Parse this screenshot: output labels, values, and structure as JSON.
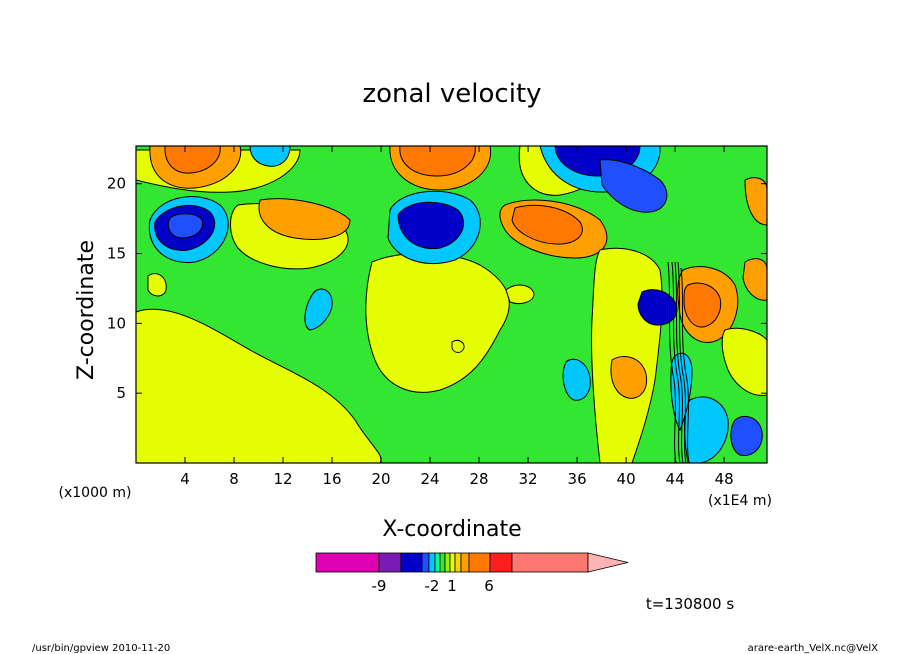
{
  "chart_data": {
    "type": "heatmap",
    "title": "zonal velocity",
    "xlabel": "X-coordinate",
    "ylabel": "Z-coordinate",
    "x_unit_label": "(x1E4 m)",
    "y_unit_label": "(x1000 m)",
    "xlim": [
      0,
      51.5
    ],
    "ylim": [
      0,
      22.7
    ],
    "x_ticks": [
      4,
      8,
      12,
      16,
      20,
      24,
      28,
      32,
      36,
      40,
      44,
      48
    ],
    "y_ticks": [
      5,
      10,
      15,
      20
    ],
    "time_label": "t=130800 s",
    "colorbar": {
      "tick_labels": [
        {
          "text": "-9",
          "value": -9
        },
        {
          "text": "-2",
          "value": -2
        },
        {
          "text": "1",
          "value": 1
        },
        {
          "text": "6",
          "value": 6
        }
      ],
      "colors": [
        "#e000b4",
        "#7a1ab4",
        "#0000c8",
        "#1e50ff",
        "#00c8ff",
        "#00ff96",
        "#32e632",
        "#96f000",
        "#e6ff00",
        "#ffd200",
        "#ffa000",
        "#ff7800",
        "#ff1e1e",
        "#ff7870",
        "#ffb4b4"
      ],
      "triangle_end": "right"
    },
    "field_samples": [
      {
        "x": 4,
        "z": 18,
        "value": -9,
        "feature": "negative core"
      },
      {
        "x": 24,
        "z": 18,
        "value": -9,
        "feature": "negative core"
      },
      {
        "x": 35,
        "z": 21.5,
        "value": -9,
        "feature": "negative core"
      },
      {
        "x": 44,
        "z": 12,
        "value": -9,
        "feature": "negative core"
      },
      {
        "x": 7,
        "z": 21,
        "value": 6,
        "feature": "positive core"
      },
      {
        "x": 25,
        "z": 21,
        "value": 6,
        "feature": "positive core"
      },
      {
        "x": 32,
        "z": 18,
        "value": 6,
        "feature": "positive core"
      },
      {
        "x": 46,
        "z": 12,
        "value": 6,
        "feature": "positive core"
      },
      {
        "x": 14,
        "z": 12,
        "value": 0,
        "feature": "background"
      },
      {
        "x": 28,
        "z": 8,
        "value": 1,
        "feature": "background"
      }
    ]
  },
  "footer": {
    "left": "/usr/bin/gpview   2010-11-20",
    "right": "arare-earth_VelX.nc@VelX"
  }
}
